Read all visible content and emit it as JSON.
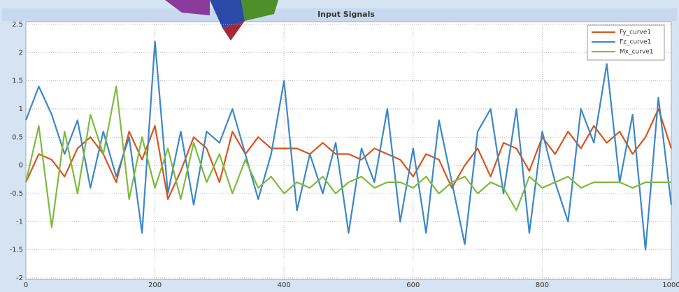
{
  "chart_data": {
    "type": "line",
    "title": "Input Signals",
    "x": [
      0,
      20,
      40,
      60,
      80,
      100,
      120,
      140,
      160,
      180,
      200,
      220,
      240,
      260,
      280,
      300,
      320,
      340,
      360,
      380,
      400,
      420,
      440,
      460,
      480,
      500,
      520,
      540,
      560,
      580,
      600,
      620,
      640,
      660,
      680,
      700,
      720,
      740,
      760,
      780,
      800,
      820,
      840,
      860,
      880,
      900,
      920,
      940,
      960,
      980,
      1000
    ],
    "series": [
      {
        "name": "Fy_curve1",
        "color": "#d9541e",
        "values": [
          -0.3,
          0.2,
          0.1,
          -0.2,
          0.3,
          0.5,
          0.2,
          -0.3,
          0.6,
          0.1,
          0.7,
          -0.6,
          -0.1,
          0.5,
          0.3,
          -0.3,
          0.6,
          0.2,
          0.5,
          0.3,
          0.3,
          0.3,
          0.2,
          0.4,
          0.2,
          0.2,
          0.1,
          0.3,
          0.2,
          0.1,
          -0.2,
          0.2,
          0.1,
          -0.4,
          0.0,
          0.3,
          -0.2,
          0.4,
          0.3,
          -0.1,
          0.5,
          0.2,
          0.6,
          0.3,
          0.7,
          0.4,
          0.6,
          0.2,
          0.5,
          1.0,
          0.3
        ]
      },
      {
        "name": "Fz_curve1",
        "color": "#3a87c8",
        "values": [
          0.8,
          1.4,
          0.9,
          0.2,
          0.8,
          -0.4,
          0.6,
          -0.2,
          0.5,
          -1.2,
          2.2,
          -0.5,
          0.6,
          -0.7,
          0.6,
          0.4,
          1.0,
          0.2,
          -0.6,
          0.2,
          1.5,
          -0.8,
          0.2,
          -0.5,
          0.4,
          -1.2,
          0.3,
          -0.3,
          1.0,
          -1.0,
          0.3,
          -1.2,
          0.8,
          -0.3,
          -1.4,
          0.6,
          1.0,
          -0.5,
          1.0,
          -1.2,
          0.6,
          -0.3,
          -1.0,
          1.0,
          0.4,
          1.8,
          -0.3,
          0.9,
          -1.5,
          1.2,
          -0.7
        ]
      },
      {
        "name": "Mx_curve1",
        "color": "#7dbb3c",
        "values": [
          -0.3,
          0.7,
          -1.1,
          0.6,
          -0.5,
          0.9,
          0.2,
          1.4,
          -0.6,
          0.5,
          -0.4,
          0.3,
          -0.6,
          0.4,
          -0.3,
          0.2,
          -0.5,
          0.1,
          -0.4,
          -0.2,
          -0.5,
          -0.3,
          -0.4,
          -0.2,
          -0.5,
          -0.3,
          -0.2,
          -0.4,
          -0.3,
          -0.3,
          -0.4,
          -0.2,
          -0.5,
          -0.3,
          -0.2,
          -0.5,
          -0.3,
          -0.4,
          -0.8,
          -0.2,
          -0.4,
          -0.3,
          -0.2,
          -0.4,
          -0.3,
          -0.3,
          -0.3,
          -0.4,
          -0.3,
          -0.3,
          -0.3
        ]
      }
    ],
    "xlim": [
      0,
      1000
    ],
    "xticks": [
      0,
      200,
      400,
      600,
      800,
      1000
    ],
    "ylim": [
      -2,
      2.5
    ],
    "yticks": [
      -2,
      -1.5,
      -1,
      -0.5,
      0,
      0.5,
      1,
      1.5,
      2,
      2.5
    ],
    "grid": true,
    "legend": "top-right"
  }
}
